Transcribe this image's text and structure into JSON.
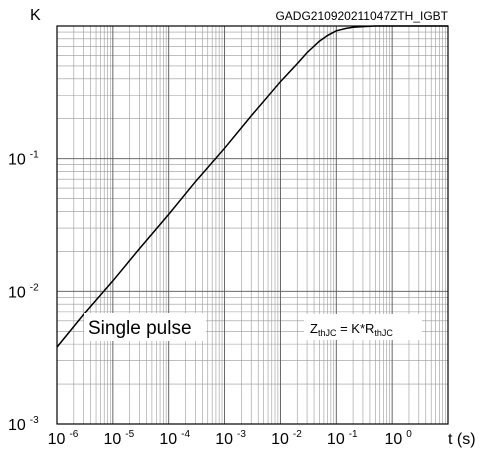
{
  "chart_data": {
    "type": "line",
    "title": "GADG210920211047ZTH_IGBT",
    "ylabel": "K",
    "xlabel": "t (s)",
    "x_scale": "log",
    "y_scale": "log",
    "xlim": [
      1e-06,
      10
    ],
    "ylim": [
      0.001,
      1
    ],
    "grid": true,
    "x_ticks": [
      {
        "base": "10",
        "exp": "-6"
      },
      {
        "base": "10",
        "exp": "-5"
      },
      {
        "base": "10",
        "exp": "-4"
      },
      {
        "base": "10",
        "exp": "-3"
      },
      {
        "base": "10",
        "exp": "-2"
      },
      {
        "base": "10",
        "exp": "-1"
      },
      {
        "base": "10",
        "exp": "0"
      }
    ],
    "y_ticks": [
      {
        "base": "10",
        "exp": "-1"
      },
      {
        "base": "10",
        "exp": "-2"
      },
      {
        "base": "10",
        "exp": "-3"
      }
    ],
    "annotations": {
      "single_pulse": "Single pulse",
      "formula": {
        "z": "Z",
        "z_sub": "thJC",
        "mid": " = K*R",
        "r_sub": "thJC"
      }
    },
    "series": [
      {
        "x": [
          1e-06,
          3e-06,
          1e-05,
          3e-05,
          0.0001,
          0.0003,
          0.001,
          0.003,
          0.01,
          0.02,
          0.03,
          0.05,
          0.07,
          0.1,
          0.15,
          0.2,
          0.3,
          0.5,
          1,
          2,
          10
        ],
        "y": [
          0.0038,
          0.0067,
          0.012,
          0.021,
          0.038,
          0.067,
          0.12,
          0.21,
          0.38,
          0.52,
          0.63,
          0.77,
          0.85,
          0.92,
          0.96,
          0.98,
          0.99,
          1.0,
          1.0,
          1.0,
          1.0
        ]
      }
    ]
  }
}
